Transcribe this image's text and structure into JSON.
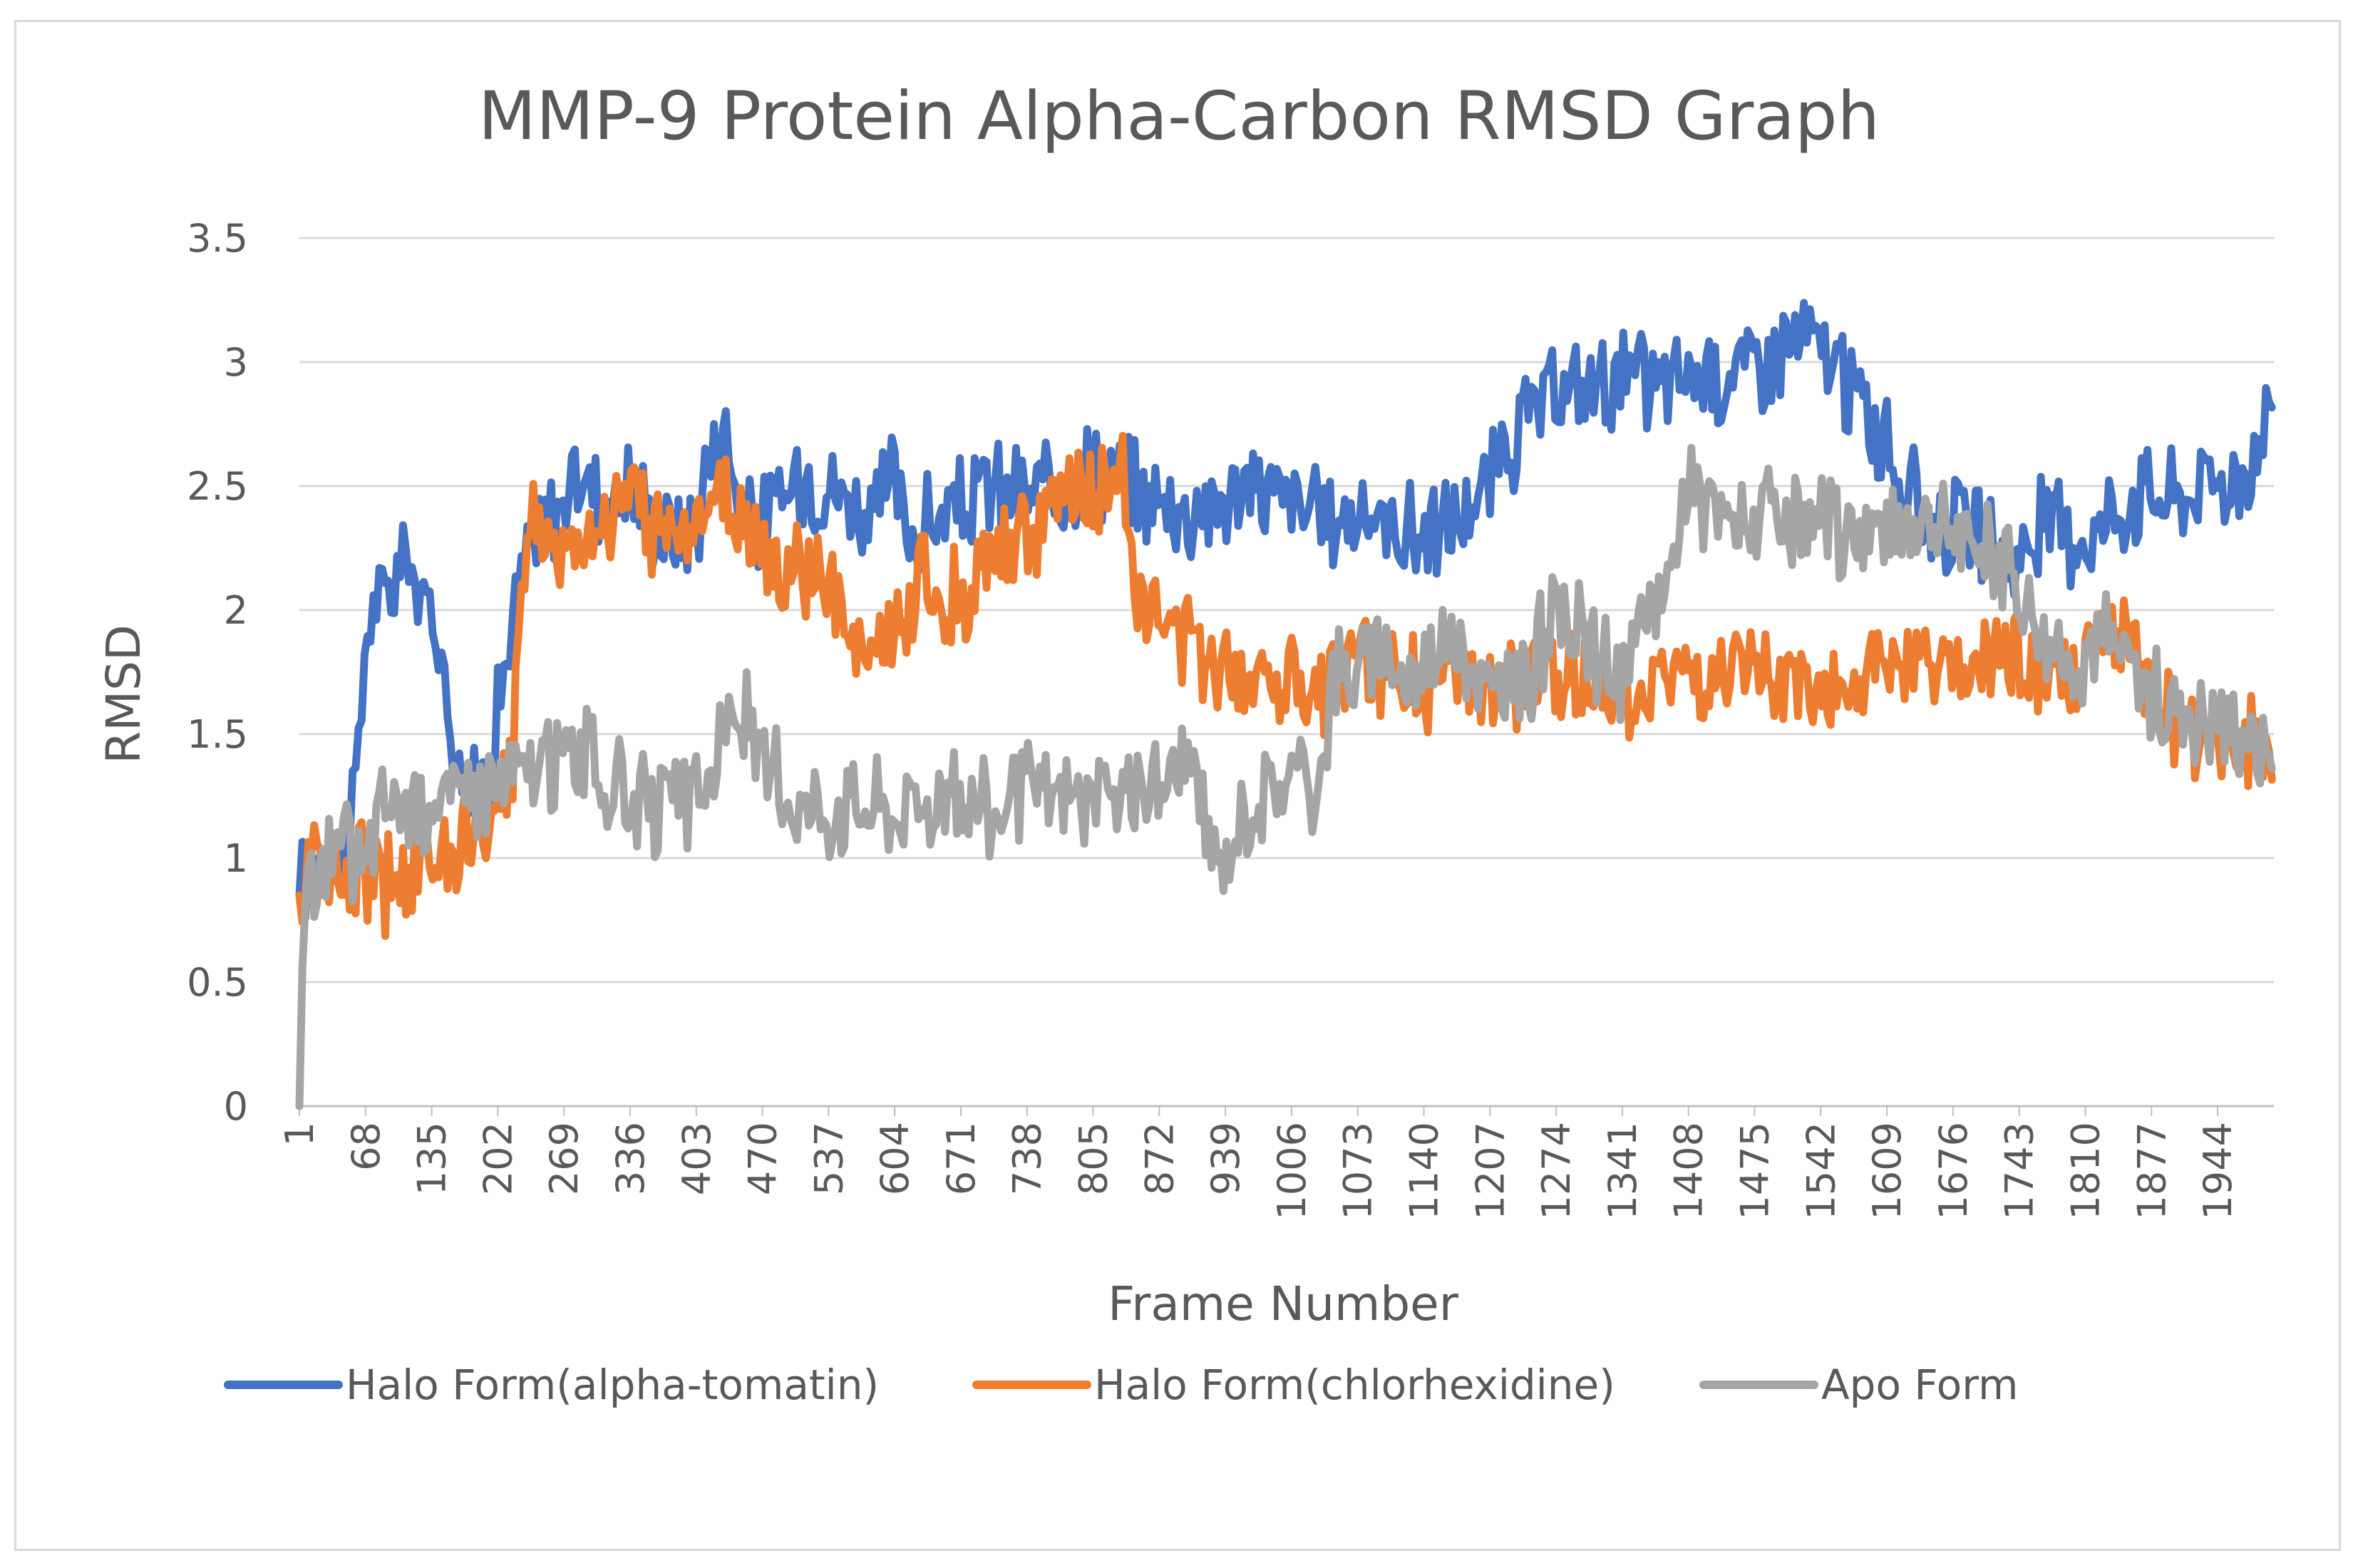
{
  "chart_data": {
    "type": "line",
    "title": "MMP-9 Protein Alpha-Carbon RMSD Graph",
    "xlabel": "Frame Number",
    "ylabel": "RMSD",
    "ylim": [
      0,
      3.5
    ],
    "yticks": [
      "0",
      "0.5",
      "1",
      "1.5",
      "2",
      "2.5",
      "3",
      "3.5"
    ],
    "xrange": [
      1,
      2001
    ],
    "xticks": [
      "1",
      "68",
      "135",
      "202",
      "269",
      "336",
      "403",
      "470",
      "537",
      "604",
      "671",
      "738",
      "805",
      "872",
      "939",
      "1006",
      "1073",
      "1140",
      "1207",
      "1274",
      "1341",
      "1408",
      "1475",
      "1542",
      "1609",
      "1676",
      "1743",
      "1810",
      "1877",
      "1944"
    ],
    "grid": true,
    "legend_position": "bottom",
    "series": [
      {
        "name": "Halo Form(alpha-tomatin)",
        "color": "#4472C4",
        "x": [
          1,
          10,
          25,
          40,
          55,
          62,
          68,
          75,
          85,
          95,
          110,
          125,
          135,
          145,
          155,
          165,
          175,
          185,
          195,
          202,
          215,
          230,
          250,
          269,
          290,
          310,
          336,
          360,
          385,
          403,
          415,
          430,
          440,
          450,
          470,
          490,
          510,
          537,
          560,
          580,
          604,
          615,
          640,
          671,
          700,
          738,
          770,
          805,
          840,
          872,
          900,
          939,
          970,
          1006,
          1040,
          1073,
          1100,
          1140,
          1170,
          1207,
          1240,
          1274,
          1300,
          1341,
          1370,
          1408,
          1440,
          1475,
          1500,
          1520,
          1542,
          1560,
          1580,
          1609,
          1640,
          1676,
          1700,
          1743,
          1770,
          1810,
          1840,
          1877,
          1900,
          1944,
          1970,
          1990,
          2001
        ],
        "values": [
          0.85,
          0.95,
          1.05,
          1.0,
          1.2,
          1.45,
          1.9,
          2.05,
          2.0,
          2.1,
          2.25,
          2.0,
          2.0,
          1.8,
          1.55,
          1.35,
          1.25,
          1.3,
          1.4,
          1.6,
          1.9,
          2.2,
          2.35,
          2.45,
          2.55,
          2.45,
          2.5,
          2.35,
          2.3,
          2.35,
          2.6,
          2.75,
          2.6,
          2.4,
          2.35,
          2.45,
          2.55,
          2.5,
          2.45,
          2.35,
          2.55,
          2.3,
          2.35,
          2.4,
          2.5,
          2.45,
          2.5,
          2.6,
          2.5,
          2.45,
          2.4,
          2.45,
          2.5,
          2.45,
          2.35,
          2.4,
          2.35,
          2.3,
          2.35,
          2.5,
          2.75,
          2.85,
          2.9,
          2.95,
          2.9,
          2.95,
          2.95,
          3.0,
          3.05,
          3.1,
          3.05,
          2.95,
          2.85,
          2.65,
          2.4,
          2.35,
          2.3,
          2.2,
          2.35,
          2.3,
          2.4,
          2.5,
          2.45,
          2.55,
          2.5,
          2.75,
          2.9
        ]
      },
      {
        "name": "Halo Form(chlorhexidine)",
        "color": "#ED7D31",
        "x": [
          1,
          10,
          25,
          40,
          55,
          68,
          85,
          100,
          120,
          135,
          155,
          175,
          195,
          202,
          215,
          225,
          235,
          250,
          269,
          290,
          310,
          336,
          360,
          385,
          403,
          420,
          440,
          460,
          470,
          490,
          510,
          537,
          560,
          580,
          604,
          630,
          650,
          671,
          700,
          738,
          770,
          790,
          805,
          820,
          835,
          850,
          872,
          900,
          939,
          970,
          1006,
          1040,
          1073,
          1100,
          1140,
          1170,
          1207,
          1240,
          1274,
          1300,
          1341,
          1370,
          1408,
          1440,
          1475,
          1500,
          1542,
          1580,
          1609,
          1640,
          1676,
          1700,
          1743,
          1770,
          1810,
          1830,
          1850,
          1877,
          1900,
          1944,
          1970,
          2001
        ],
        "values": [
          0.85,
          0.95,
          1.0,
          0.9,
          0.95,
          0.95,
          0.9,
          0.95,
          1.0,
          1.0,
          1.05,
          1.1,
          1.1,
          1.15,
          1.3,
          2.1,
          2.4,
          2.3,
          2.25,
          2.3,
          2.4,
          2.4,
          2.35,
          2.35,
          2.4,
          2.45,
          2.4,
          2.35,
          2.25,
          2.1,
          2.15,
          2.1,
          1.85,
          1.8,
          1.9,
          2.15,
          2.05,
          2.05,
          2.25,
          2.3,
          2.4,
          2.5,
          2.45,
          2.5,
          2.55,
          2.1,
          1.95,
          1.85,
          1.8,
          1.75,
          1.75,
          1.7,
          1.8,
          1.75,
          1.7,
          1.7,
          1.65,
          1.7,
          1.75,
          1.7,
          1.7,
          1.7,
          1.75,
          1.7,
          1.7,
          1.7,
          1.7,
          1.7,
          1.75,
          1.75,
          1.75,
          1.75,
          1.8,
          1.7,
          1.75,
          1.9,
          1.85,
          1.65,
          1.55,
          1.5,
          1.45,
          1.45
        ]
      },
      {
        "name": "Apo Form",
        "color": "#A5A5A5",
        "x": [
          1,
          5,
          15,
          30,
          45,
          60,
          68,
          80,
          95,
          110,
          135,
          160,
          185,
          202,
          230,
          260,
          269,
          290,
          310,
          336,
          360,
          385,
          403,
          420,
          435,
          450,
          470,
          500,
          537,
          570,
          604,
          640,
          671,
          700,
          738,
          770,
          805,
          840,
          872,
          900,
          915,
          930,
          939,
          960,
          980,
          1006,
          1030,
          1050,
          1073,
          1100,
          1130,
          1140,
          1160,
          1190,
          1207,
          1240,
          1274,
          1300,
          1320,
          1341,
          1360,
          1380,
          1400,
          1408,
          1430,
          1460,
          1475,
          1500,
          1530,
          1542,
          1570,
          1590,
          1609,
          1640,
          1676,
          1700,
          1720,
          1743,
          1770,
          1790,
          1810,
          1830,
          1850,
          1877,
          1900,
          1944,
          1970,
          2001
        ],
        "values": [
          0.0,
          0.75,
          0.9,
          1.0,
          1.05,
          1.0,
          0.95,
          1.2,
          1.25,
          1.2,
          1.25,
          1.25,
          1.3,
          1.3,
          1.35,
          1.4,
          1.4,
          1.45,
          1.3,
          1.25,
          1.2,
          1.2,
          1.25,
          1.35,
          1.55,
          1.6,
          1.35,
          1.25,
          1.2,
          1.25,
          1.2,
          1.25,
          1.25,
          1.2,
          1.25,
          1.25,
          1.25,
          1.25,
          1.3,
          1.4,
          1.2,
          0.95,
          1.0,
          1.2,
          1.25,
          1.35,
          1.3,
          1.75,
          1.75,
          1.85,
          1.7,
          1.8,
          1.9,
          1.8,
          1.65,
          1.7,
          2.0,
          1.9,
          1.8,
          1.7,
          1.9,
          2.1,
          2.3,
          2.5,
          2.4,
          2.35,
          2.4,
          2.35,
          2.3,
          2.35,
          2.3,
          2.35,
          2.3,
          2.4,
          2.3,
          2.25,
          2.2,
          2.1,
          1.85,
          1.8,
          1.85,
          1.9,
          1.8,
          1.65,
          1.6,
          1.55,
          1.5,
          1.45
        ]
      }
    ]
  }
}
